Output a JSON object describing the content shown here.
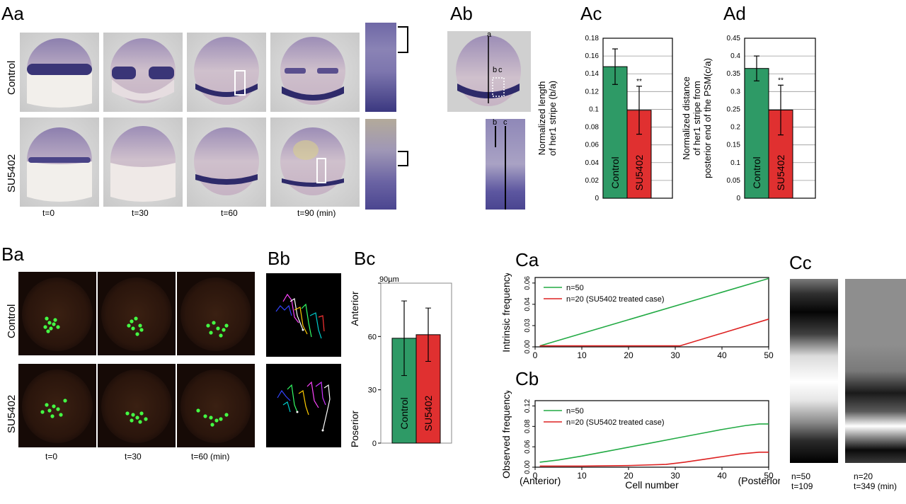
{
  "panels": {
    "Aa": "Aa",
    "Ab": "Ab",
    "Ac": "Ac",
    "Ad": "Ad",
    "Ba": "Ba",
    "Bb": "Bb",
    "Bc": "Bc",
    "Ca": "Ca",
    "Cb": "Cb",
    "Cc": "Cc"
  },
  "Aa": {
    "row_labels": [
      "Control",
      "SU5402"
    ],
    "time_labels": [
      "t=0",
      "t=30",
      "t=60",
      "t=90 (min)"
    ]
  },
  "Ab": {
    "labels": {
      "a": "a",
      "b": "b",
      "c": "c"
    }
  },
  "Ba": {
    "row_labels": [
      "Control",
      "SU5402"
    ],
    "time_labels": [
      "t=0",
      "t=30",
      "t=60 (min)"
    ]
  },
  "Cc": {
    "captions": [
      {
        "n": "n=50",
        "t": "t=109"
      },
      {
        "n": "n=20",
        "t": "t=349 (min)"
      }
    ]
  },
  "chart_data": [
    {
      "id": "Ac",
      "type": "bar",
      "categories": [
        "Control",
        "SU5402"
      ],
      "values": [
        0.148,
        0.099
      ],
      "errors": [
        0.02,
        0.027
      ],
      "significance": [
        "",
        "**"
      ],
      "ylabel_lines": [
        "Normalized length",
        "of her1 stripe (b/a)"
      ],
      "ylim": [
        0,
        0.18
      ],
      "yticks": [
        "0",
        "0.02",
        "0.04",
        "0.06",
        "0.08",
        "0.1",
        "0.12",
        "0.14",
        "0.16",
        "0.18"
      ],
      "colors": [
        "#2e9a66",
        "#e03030"
      ],
      "grid": true
    },
    {
      "id": "Ad",
      "type": "bar",
      "categories": [
        "Control",
        "SU5402"
      ],
      "values": [
        0.365,
        0.248
      ],
      "errors": [
        0.035,
        0.07
      ],
      "significance": [
        "",
        "**"
      ],
      "ylabel_lines": [
        "Normalized distance",
        "of her1 stripe from",
        "posterior end of the PSM(c/a)"
      ],
      "ylim": [
        0,
        0.45
      ],
      "yticks": [
        "0",
        "0.05",
        "0.1",
        "0.15",
        "0.2",
        "0.25",
        "0.3",
        "0.35",
        "0.4",
        "0.45"
      ],
      "colors": [
        "#2e9a66",
        "#e03030"
      ],
      "grid": true
    },
    {
      "id": "Bc",
      "type": "bar",
      "categories": [
        "Control",
        "SU5402"
      ],
      "values": [
        59,
        61
      ],
      "errors": [
        21,
        15
      ],
      "ylim": [
        0,
        90
      ],
      "yticks": [
        "0",
        "30",
        "60",
        "90µm"
      ],
      "side_labels": [
        "Anterior",
        "Poserior"
      ],
      "colors": [
        "#2e9a66",
        "#e03030"
      ],
      "grid": false
    },
    {
      "id": "Ca",
      "type": "line",
      "ylabel": "Intrinsic frequency",
      "xlim": [
        0,
        50
      ],
      "ylim": [
        0,
        0.07
      ],
      "xticks": [
        "0",
        "10",
        "20",
        "30",
        "40",
        "50"
      ],
      "yticks": [
        "0.00",
        "0.03",
        "0.04",
        "0.06"
      ],
      "series": [
        {
          "name": "n=50",
          "color": "#22aa44",
          "x": [
            1,
            50
          ],
          "y": [
            0.001,
            0.069
          ]
        },
        {
          "name": "n=20 (SU5402 treated case)",
          "color": "#dd2222",
          "x": [
            1,
            31,
            50
          ],
          "y": [
            0.001,
            0.001,
            0.028
          ]
        }
      ]
    },
    {
      "id": "Cb",
      "type": "line",
      "ylabel": "Observed frequency",
      "xlabel": "Cell number",
      "xlim": [
        0,
        50
      ],
      "ylim": [
        0,
        0.12
      ],
      "xticks": [
        "0",
        "10",
        "20",
        "30",
        "40",
        "50"
      ],
      "yticks": [
        "0.00",
        "0.06",
        "0.08",
        "0.12"
      ],
      "x_end_labels": [
        "(Anterior)",
        "(Posterior)"
      ],
      "series": [
        {
          "name": "n=50",
          "color": "#22aa44",
          "x": [
            1,
            5,
            10,
            15,
            20,
            25,
            30,
            35,
            40,
            45,
            48,
            50
          ],
          "y": [
            0.009,
            0.013,
            0.02,
            0.028,
            0.036,
            0.044,
            0.052,
            0.06,
            0.068,
            0.075,
            0.078,
            0.078
          ]
        },
        {
          "name": "n=20 (SU5402 treated case)",
          "color": "#dd2222",
          "x": [
            1,
            10,
            20,
            28,
            32,
            36,
            40,
            44,
            48,
            50
          ],
          "y": [
            0.002,
            0.002,
            0.003,
            0.005,
            0.009,
            0.014,
            0.019,
            0.024,
            0.027,
            0.027
          ]
        }
      ]
    }
  ]
}
